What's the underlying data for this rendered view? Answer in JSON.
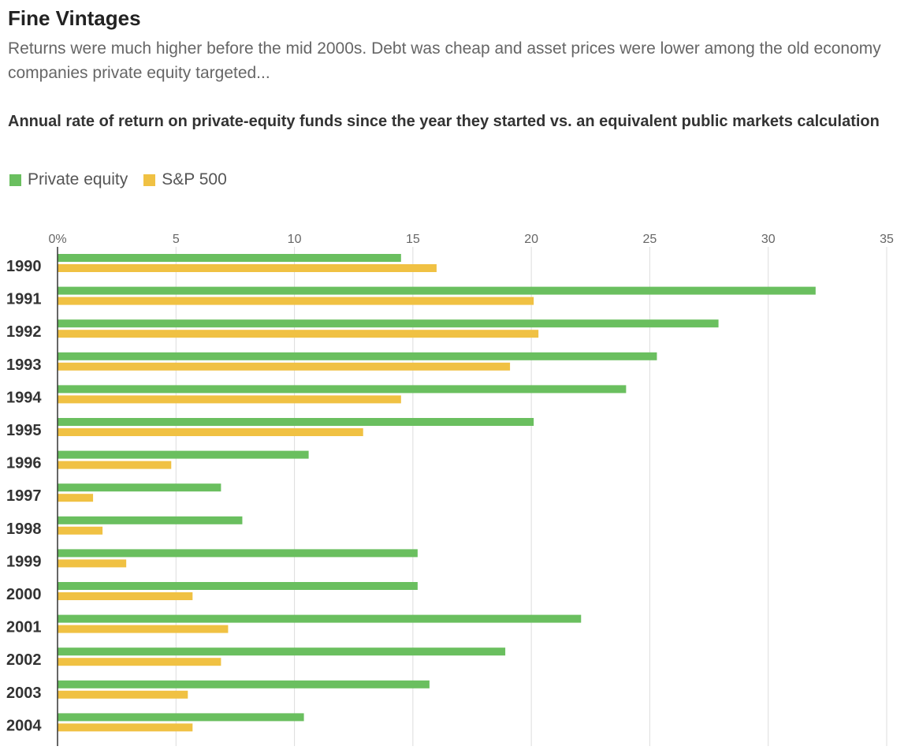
{
  "headline": "Fine Vintages",
  "dek": "Returns were much higher before the mid 2000s. Debt was cheap and asset prices were lower among the old economy companies private equity targeted...",
  "colors": {
    "private_equity": "#6abf5f",
    "sp500": "#f0c143",
    "grid": "#dddddd",
    "axis": "#333333"
  },
  "chart_data": {
    "type": "bar",
    "orientation": "horizontal",
    "title": "Annual rate of return on private-equity funds since the year they started vs. an equivalent public markets calculation",
    "xlabel": "",
    "ylabel": "",
    "xlim": [
      0,
      35
    ],
    "x_ticks": [
      0,
      5,
      10,
      15,
      20,
      25,
      30,
      35
    ],
    "x_tick_labels": [
      "0%",
      "5",
      "10",
      "15",
      "20",
      "25",
      "30",
      "35"
    ],
    "grid": true,
    "legend_position": "top-left",
    "categories": [
      "1990",
      "1991",
      "1992",
      "1993",
      "1994",
      "1995",
      "1996",
      "1997",
      "1998",
      "1999",
      "2000",
      "2001",
      "2002",
      "2003",
      "2004"
    ],
    "series": [
      {
        "name": "Private equity",
        "values": [
          14.5,
          32.0,
          27.9,
          25.3,
          24.0,
          20.1,
          10.6,
          6.9,
          7.8,
          15.2,
          15.2,
          22.1,
          18.9,
          15.7,
          10.4
        ]
      },
      {
        "name": "S&P 500",
        "values": [
          16.0,
          20.1,
          20.3,
          19.1,
          14.5,
          12.9,
          4.8,
          1.5,
          1.9,
          2.9,
          5.7,
          7.2,
          6.9,
          5.5,
          5.7
        ]
      }
    ]
  }
}
